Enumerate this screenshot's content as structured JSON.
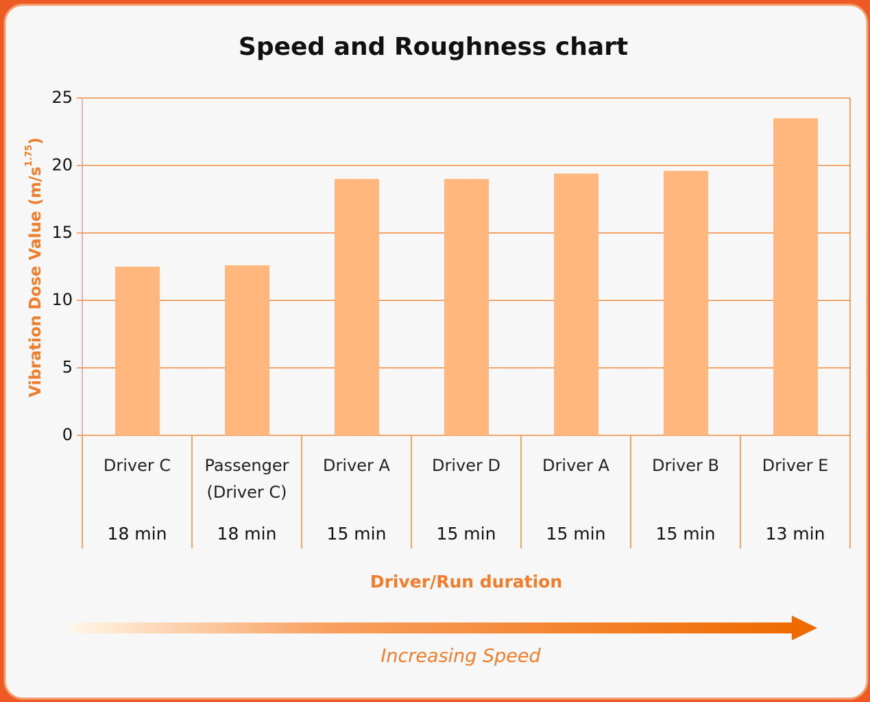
{
  "chart_data": {
    "type": "bar",
    "title": "Speed and Roughness chart",
    "y_label": "Vibration Dose Value (m/s",
    "y_label_sup": "1.75",
    "y_label_end": ")",
    "x_label": "Driver/Run duration",
    "annotation": "Increasing Speed",
    "categories": [
      "Driver C",
      "Passenger (Driver C)",
      "Driver A",
      "Driver D",
      "Driver A",
      "Driver B",
      "Driver E"
    ],
    "durations": [
      "18 min",
      "18 min",
      "15 min",
      "15 min",
      "15 min",
      "15 min",
      "13 min"
    ],
    "values": [
      12.5,
      12.6,
      19,
      19,
      19.4,
      19.6,
      23.5
    ],
    "color": "#ffb77e",
    "ylim": [
      0,
      25
    ],
    "yticks": [
      0,
      5,
      10,
      15,
      20,
      25
    ],
    "grid": true
  }
}
